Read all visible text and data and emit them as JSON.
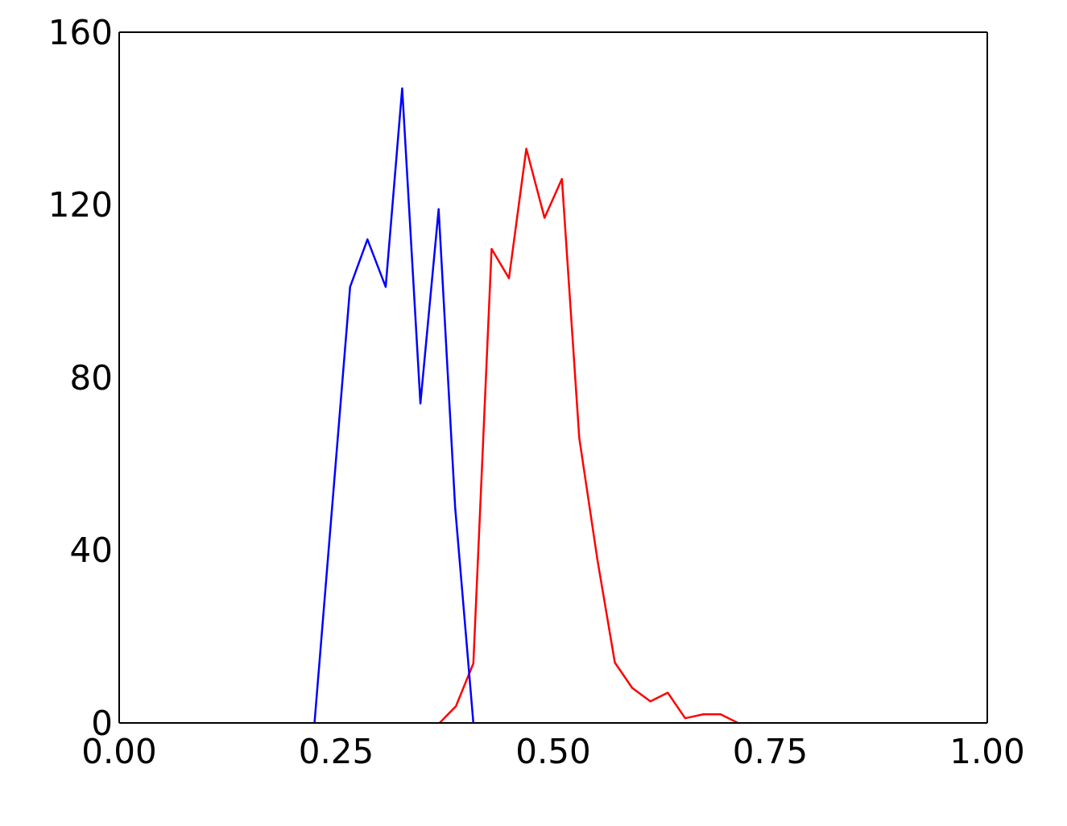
{
  "chart_data": {
    "type": "line",
    "xlim": [
      0,
      1
    ],
    "ylim": [
      0,
      160
    ],
    "xticks": [
      {
        "value": 0,
        "label": "0.00"
      },
      {
        "value": 0.25,
        "label": "0.25"
      },
      {
        "value": 0.5,
        "label": "0.50"
      },
      {
        "value": 0.75,
        "label": "0.75"
      },
      {
        "value": 1,
        "label": "1.00"
      }
    ],
    "yticks": [
      0,
      40,
      80,
      120,
      160
    ],
    "grid": false,
    "legend": false,
    "marker": "none",
    "line_style": "solid",
    "series": [
      {
        "color": "#ff0000",
        "x": [
          0.369,
          0.388,
          0.408,
          0.429,
          0.449,
          0.469,
          0.49,
          0.51,
          0.53,
          0.551,
          0.571,
          0.591,
          0.612,
          0.632,
          0.652,
          0.673,
          0.693,
          0.713
        ],
        "values": [
          0,
          3.9,
          13.8,
          109.8,
          103,
          133,
          117,
          126,
          66,
          37.7,
          14,
          8.1,
          5,
          7,
          1.1,
          2,
          2,
          0
        ]
      },
      {
        "color": "#0000ff",
        "x": [
          0.225,
          0.266,
          0.286,
          0.307,
          0.326,
          0.347,
          0.368,
          0.387,
          0.408
        ],
        "values": [
          0,
          101,
          112,
          101,
          147,
          74,
          119,
          50,
          0
        ]
      }
    ]
  }
}
